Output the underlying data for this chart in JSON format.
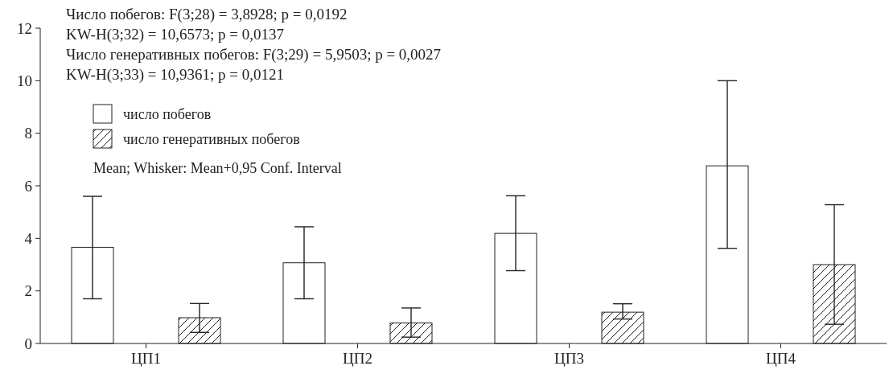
{
  "chart_data": {
    "type": "bar",
    "categories": [
      "ЦП1",
      "ЦП2",
      "ЦП3",
      "ЦП4"
    ],
    "series": [
      {
        "name": "число побегов",
        "color": "#ffffff",
        "values": [
          3.66,
          3.07,
          4.19,
          6.76
        ],
        "errors": [
          [
            1.7,
            5.6
          ],
          [
            1.7,
            4.44
          ],
          [
            2.77,
            5.62
          ],
          [
            3.62,
            10.0
          ]
        ]
      },
      {
        "name": "число генеративных побегов",
        "color": "#222222",
        "values": [
          0.98,
          0.78,
          1.19,
          3.0
        ],
        "errors": [
          [
            0.42,
            1.52
          ],
          [
            0.24,
            1.35
          ],
          [
            0.93,
            1.51
          ],
          [
            0.73,
            5.28
          ]
        ]
      }
    ],
    "ylim": [
      0,
      12
    ],
    "yticks": [
      0,
      2,
      4,
      6,
      8,
      10,
      12
    ],
    "grid": false,
    "legend": "top left",
    "annotations": [
      "Число побегов: F(3;28) = 3,8928; p = 0,0192",
      "KW-H(3;32) = 10,6573; p = 0,0137",
      "Число генеративных побегов: F(3;29) = 5,9503; p = 0,0027",
      "KW-H(3;33) = 10,9361; p = 0,0121",
      "Mean; Whisker: Mean+0,95 Conf. Interval"
    ]
  }
}
